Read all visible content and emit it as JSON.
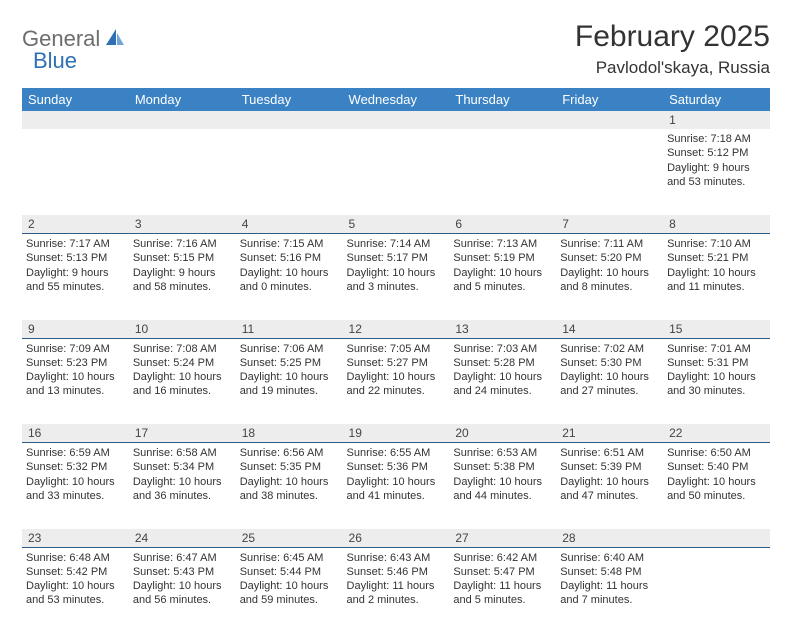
{
  "logo": {
    "general": "General",
    "blue": "Blue"
  },
  "title": "February 2025",
  "location": "Pavlodol'skaya, Russia",
  "colors": {
    "header_bg": "#3b82c4",
    "header_text": "#ffffff",
    "row_border": "#2b5c8a",
    "daynum_bg": "#ededed",
    "text": "#333333",
    "logo_gray": "#6d6d6d",
    "logo_blue": "#2f6fb4"
  },
  "day_names": [
    "Sunday",
    "Monday",
    "Tuesday",
    "Wednesday",
    "Thursday",
    "Friday",
    "Saturday"
  ],
  "weeks": [
    [
      null,
      null,
      null,
      null,
      null,
      null,
      {
        "n": "1",
        "sr": "Sunrise: 7:18 AM",
        "ss": "Sunset: 5:12 PM",
        "dl1": "Daylight: 9 hours",
        "dl2": "and 53 minutes."
      }
    ],
    [
      {
        "n": "2",
        "sr": "Sunrise: 7:17 AM",
        "ss": "Sunset: 5:13 PM",
        "dl1": "Daylight: 9 hours",
        "dl2": "and 55 minutes."
      },
      {
        "n": "3",
        "sr": "Sunrise: 7:16 AM",
        "ss": "Sunset: 5:15 PM",
        "dl1": "Daylight: 9 hours",
        "dl2": "and 58 minutes."
      },
      {
        "n": "4",
        "sr": "Sunrise: 7:15 AM",
        "ss": "Sunset: 5:16 PM",
        "dl1": "Daylight: 10 hours",
        "dl2": "and 0 minutes."
      },
      {
        "n": "5",
        "sr": "Sunrise: 7:14 AM",
        "ss": "Sunset: 5:17 PM",
        "dl1": "Daylight: 10 hours",
        "dl2": "and 3 minutes."
      },
      {
        "n": "6",
        "sr": "Sunrise: 7:13 AM",
        "ss": "Sunset: 5:19 PM",
        "dl1": "Daylight: 10 hours",
        "dl2": "and 5 minutes."
      },
      {
        "n": "7",
        "sr": "Sunrise: 7:11 AM",
        "ss": "Sunset: 5:20 PM",
        "dl1": "Daylight: 10 hours",
        "dl2": "and 8 minutes."
      },
      {
        "n": "8",
        "sr": "Sunrise: 7:10 AM",
        "ss": "Sunset: 5:21 PM",
        "dl1": "Daylight: 10 hours",
        "dl2": "and 11 minutes."
      }
    ],
    [
      {
        "n": "9",
        "sr": "Sunrise: 7:09 AM",
        "ss": "Sunset: 5:23 PM",
        "dl1": "Daylight: 10 hours",
        "dl2": "and 13 minutes."
      },
      {
        "n": "10",
        "sr": "Sunrise: 7:08 AM",
        "ss": "Sunset: 5:24 PM",
        "dl1": "Daylight: 10 hours",
        "dl2": "and 16 minutes."
      },
      {
        "n": "11",
        "sr": "Sunrise: 7:06 AM",
        "ss": "Sunset: 5:25 PM",
        "dl1": "Daylight: 10 hours",
        "dl2": "and 19 minutes."
      },
      {
        "n": "12",
        "sr": "Sunrise: 7:05 AM",
        "ss": "Sunset: 5:27 PM",
        "dl1": "Daylight: 10 hours",
        "dl2": "and 22 minutes."
      },
      {
        "n": "13",
        "sr": "Sunrise: 7:03 AM",
        "ss": "Sunset: 5:28 PM",
        "dl1": "Daylight: 10 hours",
        "dl2": "and 24 minutes."
      },
      {
        "n": "14",
        "sr": "Sunrise: 7:02 AM",
        "ss": "Sunset: 5:30 PM",
        "dl1": "Daylight: 10 hours",
        "dl2": "and 27 minutes."
      },
      {
        "n": "15",
        "sr": "Sunrise: 7:01 AM",
        "ss": "Sunset: 5:31 PM",
        "dl1": "Daylight: 10 hours",
        "dl2": "and 30 minutes."
      }
    ],
    [
      {
        "n": "16",
        "sr": "Sunrise: 6:59 AM",
        "ss": "Sunset: 5:32 PM",
        "dl1": "Daylight: 10 hours",
        "dl2": "and 33 minutes."
      },
      {
        "n": "17",
        "sr": "Sunrise: 6:58 AM",
        "ss": "Sunset: 5:34 PM",
        "dl1": "Daylight: 10 hours",
        "dl2": "and 36 minutes."
      },
      {
        "n": "18",
        "sr": "Sunrise: 6:56 AM",
        "ss": "Sunset: 5:35 PM",
        "dl1": "Daylight: 10 hours",
        "dl2": "and 38 minutes."
      },
      {
        "n": "19",
        "sr": "Sunrise: 6:55 AM",
        "ss": "Sunset: 5:36 PM",
        "dl1": "Daylight: 10 hours",
        "dl2": "and 41 minutes."
      },
      {
        "n": "20",
        "sr": "Sunrise: 6:53 AM",
        "ss": "Sunset: 5:38 PM",
        "dl1": "Daylight: 10 hours",
        "dl2": "and 44 minutes."
      },
      {
        "n": "21",
        "sr": "Sunrise: 6:51 AM",
        "ss": "Sunset: 5:39 PM",
        "dl1": "Daylight: 10 hours",
        "dl2": "and 47 minutes."
      },
      {
        "n": "22",
        "sr": "Sunrise: 6:50 AM",
        "ss": "Sunset: 5:40 PM",
        "dl1": "Daylight: 10 hours",
        "dl2": "and 50 minutes."
      }
    ],
    [
      {
        "n": "23",
        "sr": "Sunrise: 6:48 AM",
        "ss": "Sunset: 5:42 PM",
        "dl1": "Daylight: 10 hours",
        "dl2": "and 53 minutes."
      },
      {
        "n": "24",
        "sr": "Sunrise: 6:47 AM",
        "ss": "Sunset: 5:43 PM",
        "dl1": "Daylight: 10 hours",
        "dl2": "and 56 minutes."
      },
      {
        "n": "25",
        "sr": "Sunrise: 6:45 AM",
        "ss": "Sunset: 5:44 PM",
        "dl1": "Daylight: 10 hours",
        "dl2": "and 59 minutes."
      },
      {
        "n": "26",
        "sr": "Sunrise: 6:43 AM",
        "ss": "Sunset: 5:46 PM",
        "dl1": "Daylight: 11 hours",
        "dl2": "and 2 minutes."
      },
      {
        "n": "27",
        "sr": "Sunrise: 6:42 AM",
        "ss": "Sunset: 5:47 PM",
        "dl1": "Daylight: 11 hours",
        "dl2": "and 5 minutes."
      },
      {
        "n": "28",
        "sr": "Sunrise: 6:40 AM",
        "ss": "Sunset: 5:48 PM",
        "dl1": "Daylight: 11 hours",
        "dl2": "and 7 minutes."
      },
      null
    ]
  ]
}
